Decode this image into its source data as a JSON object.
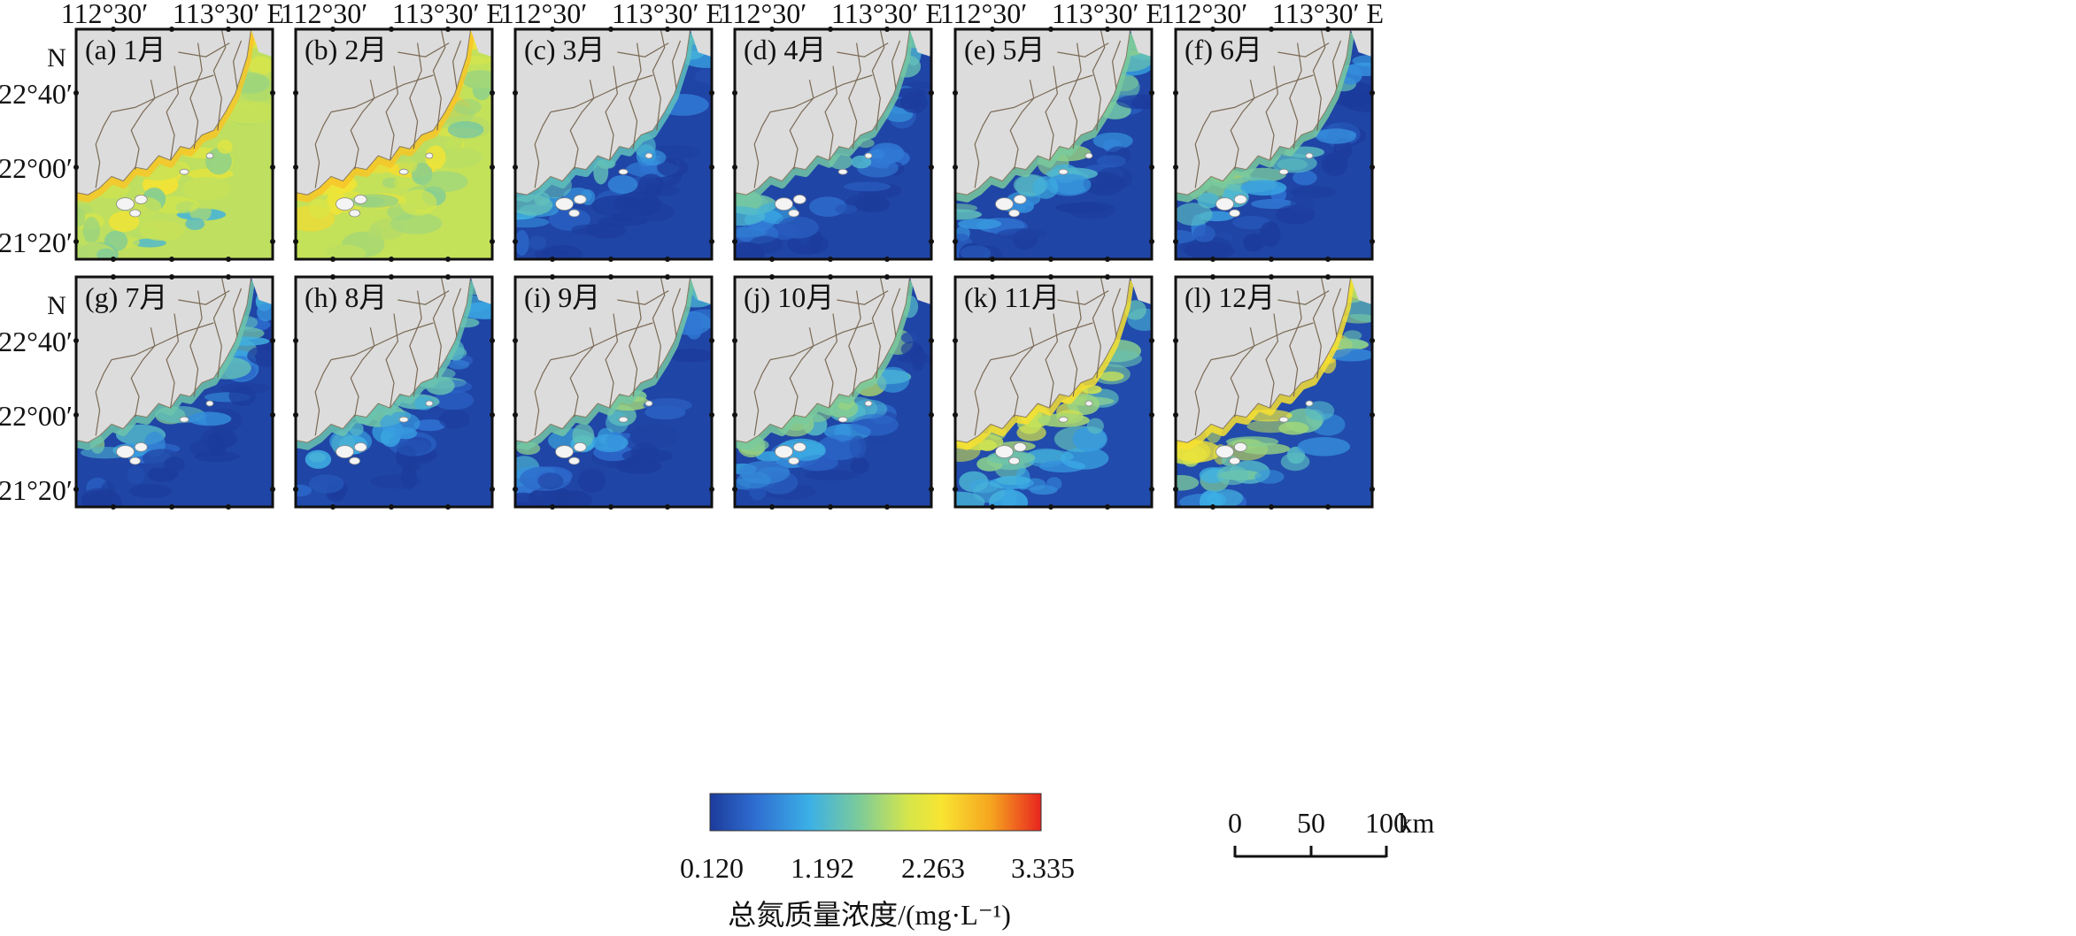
{
  "figure": {
    "coord_labels": {
      "lon_west": "112°30′",
      "lon_east": "113°30′ E",
      "north": "N",
      "lat_top": "22°40′",
      "lat_mid": "22°00′",
      "lat_bottom": "21°20′"
    },
    "panels": [
      {
        "label": "(a) 1月",
        "mean_level": 2.26,
        "pattern": "high"
      },
      {
        "label": "(b) 2月",
        "mean_level": 2.3,
        "pattern": "high"
      },
      {
        "label": "(c) 3月",
        "mean_level": 0.25,
        "pattern": "low"
      },
      {
        "label": "(d) 4月",
        "mean_level": 0.4,
        "pattern": "low"
      },
      {
        "label": "(e) 5月",
        "mean_level": 0.45,
        "pattern": "low"
      },
      {
        "label": "(f) 6月",
        "mean_level": 0.45,
        "pattern": "low"
      },
      {
        "label": "(g) 7月",
        "mean_level": 0.35,
        "pattern": "low"
      },
      {
        "label": "(h) 8月",
        "mean_level": 0.33,
        "pattern": "low"
      },
      {
        "label": "(i) 9月",
        "mean_level": 0.4,
        "pattern": "low"
      },
      {
        "label": "(j) 10月",
        "mean_level": 0.45,
        "pattern": "low"
      },
      {
        "label": "(k) 11月",
        "mean_level": 1.2,
        "pattern": "medium"
      },
      {
        "label": "(l) 12月",
        "mean_level": 1.3,
        "pattern": "medium"
      }
    ],
    "colorbar": {
      "ticks": [
        "0.120",
        "1.192",
        "2.263",
        "3.335"
      ],
      "title": "总氮质量浓度/(mg·L⁻¹)",
      "colors": [
        "#1c3c9c",
        "#2f6fd2",
        "#3cb0e6",
        "#7ccb9a",
        "#d6e64a",
        "#f8e431",
        "#f5a41f",
        "#e8241f"
      ]
    },
    "scalebar": {
      "ticks": [
        "0",
        "50",
        "100"
      ],
      "unit": "km"
    },
    "map_colors": {
      "land": "#dcdcdc",
      "deep_water": "#213f9b",
      "river": "#7a6a55"
    }
  }
}
